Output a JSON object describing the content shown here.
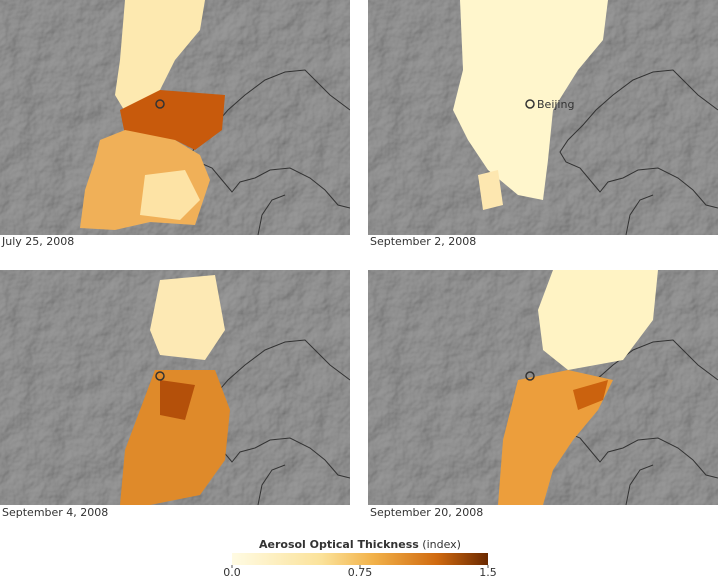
{
  "panels": [
    {
      "date": "July 25, 2008"
    },
    {
      "date": "September 2, 2008",
      "city": "Beijing"
    },
    {
      "date": "September 4, 2008"
    },
    {
      "date": "September 20, 2008"
    }
  ],
  "legend": {
    "title": "Aerosol Optical Thickness",
    "unit": "(index)",
    "range": [
      0,
      1.5
    ],
    "ticks": [
      {
        "value": 0,
        "label": "0.0"
      },
      {
        "value": 0.75,
        "label": "0.75"
      },
      {
        "value": 1.5,
        "label": "1.5"
      }
    ]
  }
}
